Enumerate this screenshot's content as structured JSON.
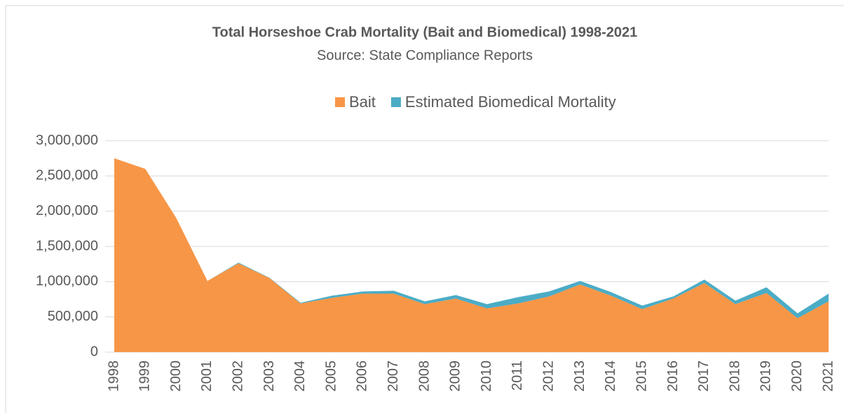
{
  "chart_data": {
    "type": "stacked_area",
    "title": "Total Horseshoe Crab Mortality (Bait and Biomedical) 1998-2021",
    "subtitle": "Source: State Compliance Reports",
    "categories": [
      "1998",
      "1999",
      "2000",
      "2001",
      "2002",
      "2003",
      "2004",
      "2005",
      "2006",
      "2007",
      "2008",
      "2009",
      "2010",
      "2011",
      "2012",
      "2013",
      "2014",
      "2015",
      "2016",
      "2017",
      "2018",
      "2019",
      "2020",
      "2021"
    ],
    "series": [
      {
        "name": "Bait",
        "color": "#f79646",
        "values": [
          2750000,
          2600000,
          1900000,
          1010000,
          1260000,
          1050000,
          690000,
          770000,
          830000,
          830000,
          680000,
          760000,
          620000,
          690000,
          790000,
          960000,
          800000,
          610000,
          760000,
          980000,
          680000,
          840000,
          480000,
          720000
        ]
      },
      {
        "name": "Estimated Biomedical Mortality",
        "color": "#4bacc6",
        "values": [
          0,
          0,
          0,
          0,
          10000,
          5000,
          10000,
          30000,
          30000,
          40000,
          40000,
          50000,
          60000,
          90000,
          70000,
          50000,
          50000,
          50000,
          30000,
          50000,
          50000,
          80000,
          70000,
          110000
        ]
      }
    ],
    "ylim": [
      0,
      3000000
    ],
    "yticks": [
      0,
      {
        "value": 500000,
        "label": "500,000"
      },
      {
        "value": 1000000,
        "label": "1,000,000"
      },
      {
        "value": 1500000,
        "label": "1,500,000"
      },
      {
        "value": 2000000,
        "label": "2,000,000"
      },
      {
        "value": 2500000,
        "label": "2,500,000"
      },
      {
        "value": 3000000,
        "label": "3,000,000"
      }
    ],
    "grid": true,
    "legend": "top"
  }
}
